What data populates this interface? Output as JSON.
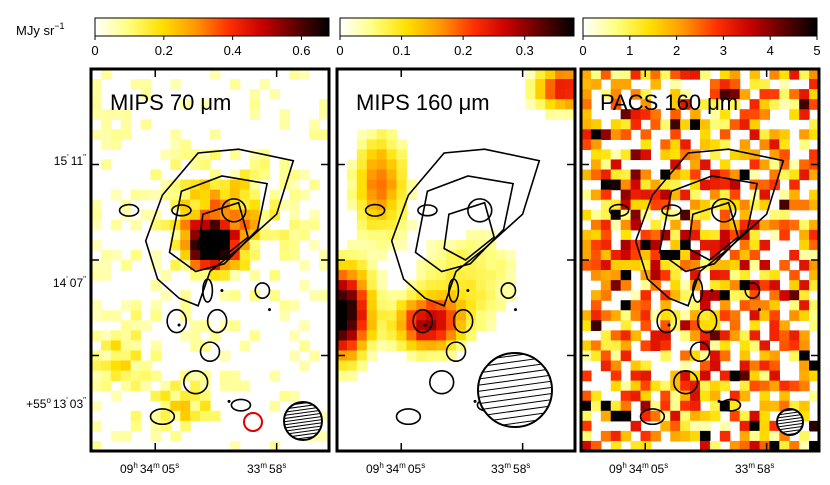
{
  "figure": {
    "unit_label": "MJy sr",
    "unit_exponent": "−1",
    "colormap": [
      "#ffffff",
      "#ffff80",
      "#ffe000",
      "#ff9800",
      "#ff3000",
      "#c80000",
      "#600000",
      "#000000"
    ],
    "contour_color": "#000000",
    "panels": [
      {
        "id": "mips70",
        "title_instrument": "MIPS 70",
        "title_unit": "μm",
        "colorbar": {
          "min": 0,
          "max": 0.68,
          "ticks": [
            "0",
            "0.2",
            "0.4",
            "0.6"
          ],
          "tick_values": [
            0,
            0.2,
            0.4,
            0.6
          ]
        },
        "y_ticks": [
          {
            "pre": "",
            "deg": "",
            "min": "15",
            "minsym": "'",
            "sec": "11",
            "secsym": "\""
          },
          {
            "pre": "",
            "deg": "",
            "min": "14",
            "minsym": "'",
            "sec": "07",
            "secsym": "\""
          },
          {
            "pre": "+55",
            "deg": "o",
            "min": "13",
            "minsym": "'",
            "sec": "03",
            "secsym": "\""
          }
        ],
        "x_ticks": [
          {
            "h": "09",
            "hsym": "h",
            "m": "34",
            "msym": "m",
            "s": "05",
            "ssym": "s"
          },
          {
            "h": "",
            "hsym": "",
            "m": "33",
            "msym": "m",
            "s": "58",
            "ssym": "s"
          }
        ]
      },
      {
        "id": "mips160",
        "title_instrument": "MIPS 160",
        "title_unit": "μm",
        "colorbar": {
          "min": 0,
          "max": 0.38,
          "ticks": [
            "0",
            "0.1",
            "0.2",
            "0.3"
          ],
          "tick_values": [
            0,
            0.1,
            0.2,
            0.3
          ]
        },
        "x_ticks": [
          {
            "h": "09",
            "hsym": "h",
            "m": "34",
            "msym": "m",
            "s": "05",
            "ssym": "s"
          },
          {
            "h": "",
            "hsym": "",
            "m": "33",
            "msym": "m",
            "s": "58",
            "ssym": "s"
          }
        ]
      },
      {
        "id": "pacs160",
        "title_instrument": "PACS 160",
        "title_unit": "μm",
        "colorbar": {
          "min": 0,
          "max": 5,
          "ticks": [
            "0",
            "1",
            "2",
            "3",
            "4",
            "5"
          ],
          "tick_values": [
            0,
            1,
            2,
            3,
            4,
            5
          ]
        },
        "x_ticks": [
          {
            "h": "09",
            "hsym": "h",
            "m": "34",
            "msym": "m",
            "s": "05",
            "ssym": "s"
          },
          {
            "h": "",
            "hsym": "",
            "m": "33",
            "msym": "m",
            "s": "58",
            "ssym": "s"
          }
        ]
      }
    ]
  }
}
